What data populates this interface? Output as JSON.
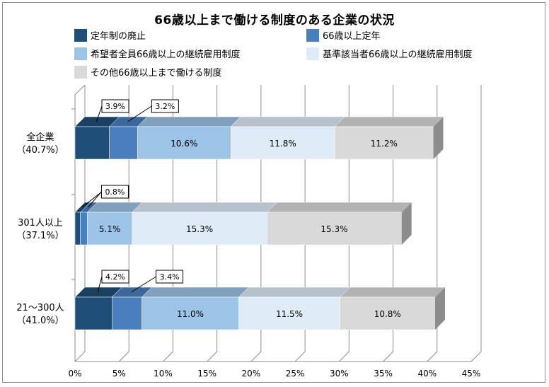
{
  "chart_data": {
    "type": "bar",
    "orientation": "horizontal",
    "stacked": true,
    "title": "66歳以上まで働ける制度のある企業の状況",
    "categories": [
      {
        "line1": "全企業",
        "line2": "（40.7%）"
      },
      {
        "line1": "301人以上",
        "line2": "（37.1%）"
      },
      {
        "line1": "21～300人",
        "line2": "（41.0%）"
      }
    ],
    "series": [
      {
        "name": "定年制の廃止",
        "color": "#1f4e79",
        "values": [
          3.9,
          0.6,
          4.2
        ]
      },
      {
        "name": "66歳以上定年",
        "color": "#4a7fbd",
        "values": [
          3.2,
          0.8,
          3.4
        ]
      },
      {
        "name": "希望者全員66歳以上の継続雇用制度",
        "color": "#9dc3e6",
        "values": [
          10.6,
          5.1,
          11.0
        ]
      },
      {
        "name": "基準該当者66歳以上の継続雇用制度",
        "color": "#dfebf7",
        "values": [
          11.8,
          15.3,
          11.5
        ]
      },
      {
        "name": "その他66歳以上まで働ける制度",
        "color": "#d9d9d9",
        "values": [
          11.2,
          15.3,
          10.8
        ]
      }
    ],
    "data_labels": [
      [
        "3.9%",
        "3.2%",
        "10.6%",
        "11.8%",
        "11.2%"
      ],
      [
        "0.6%",
        "0.8%",
        "5.1%",
        "15.3%",
        "15.3%"
      ],
      [
        "4.2%",
        "3.4%",
        "11.0%",
        "11.5%",
        "10.8%"
      ]
    ],
    "xlim": [
      0,
      45
    ],
    "x_ticks": [
      "0%",
      "5%",
      "10%",
      "15%",
      "20%",
      "25%",
      "30%",
      "35%",
      "40%",
      "45%"
    ],
    "grid": true,
    "legend_position": "top",
    "style": "3d"
  }
}
